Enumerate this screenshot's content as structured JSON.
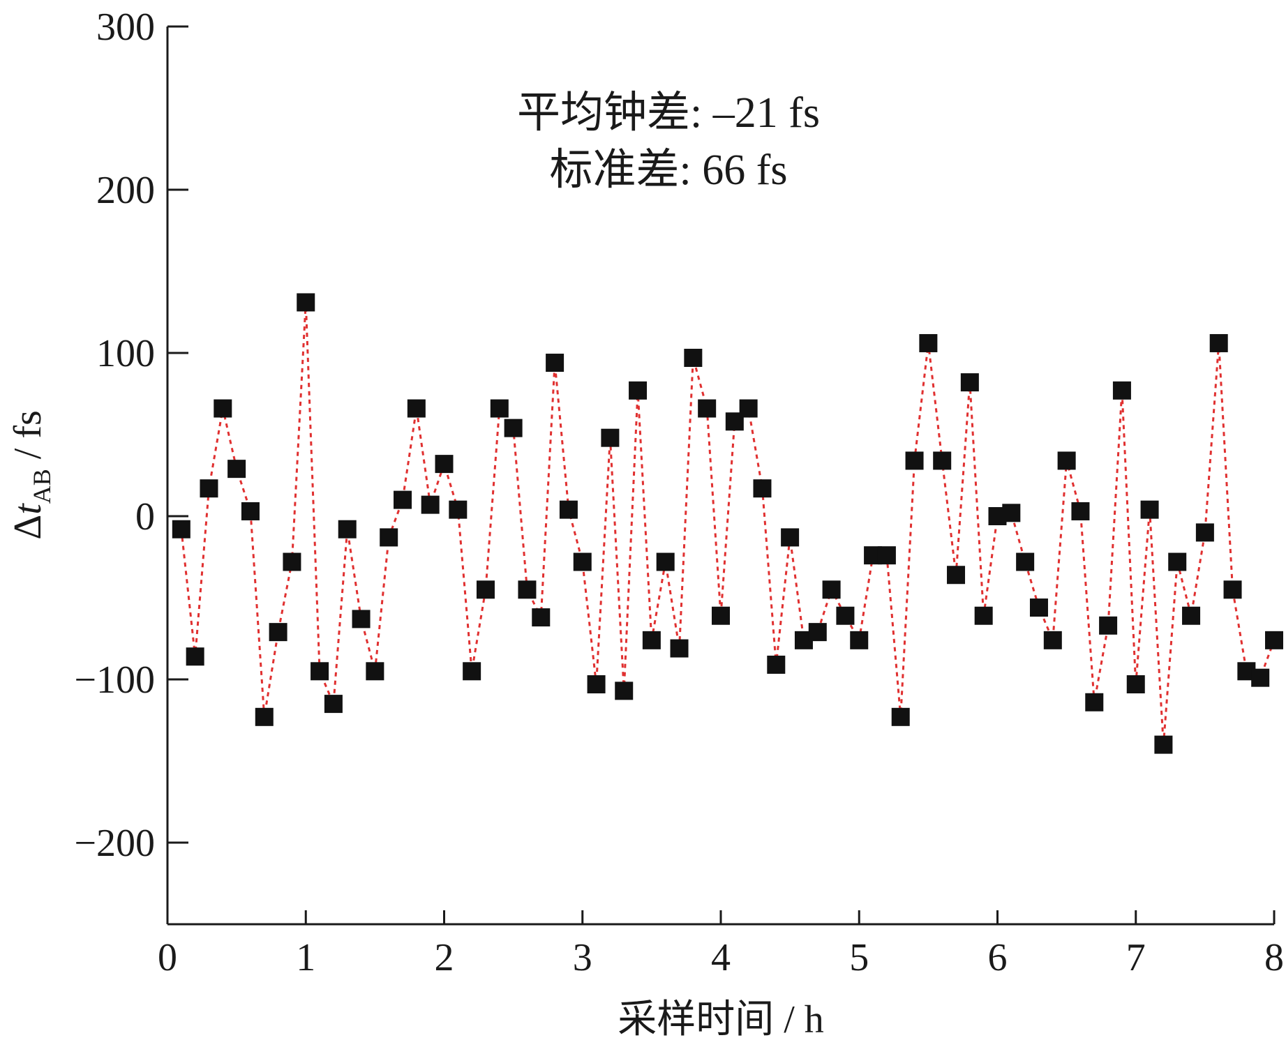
{
  "colors": {
    "line": "#e03030",
    "marker": "#111111",
    "axis": "#1a1a1a"
  },
  "chart_data": {
    "type": "line",
    "xlabel": "采样时间 / h",
    "ylabel": {
      "prefix": "Δ",
      "var": "t",
      "sub": "AB",
      "unit": " / fs"
    },
    "xlim": [
      0,
      8
    ],
    "ylim": [
      -250,
      300
    ],
    "x_ticks": [
      0,
      1,
      2,
      3,
      4,
      5,
      6,
      7,
      8
    ],
    "y_ticks": [
      -200,
      -100,
      0,
      100,
      200,
      300
    ],
    "x_tick_labels": [
      "0",
      "1",
      "2",
      "3",
      "4",
      "5",
      "6",
      "7",
      "8"
    ],
    "y_tick_labels": [
      "−200",
      "−100",
      "0",
      "100",
      "200",
      "300"
    ],
    "annotations": [
      "平均钟差: –21 fs",
      "标准差: 66 fs"
    ],
    "grid": false,
    "marker": "square",
    "line_style": "dotted",
    "series": [
      {
        "x": [
          0.1,
          0.2,
          0.3,
          0.4,
          0.5,
          0.6,
          0.7,
          0.8,
          0.9,
          1.0,
          1.1,
          1.2,
          1.3,
          1.4,
          1.5,
          1.6,
          1.7,
          1.8,
          1.9,
          2.0,
          2.1,
          2.2,
          2.3,
          2.4,
          2.5,
          2.6,
          2.7,
          2.8,
          2.9,
          3.0,
          3.1,
          3.2,
          3.3,
          3.4,
          3.5,
          3.6,
          3.7,
          3.8,
          3.9,
          4.0,
          4.1,
          4.2,
          4.3,
          4.4,
          4.5,
          4.6,
          4.7,
          4.8,
          4.9,
          5.0,
          5.1,
          5.2,
          5.3,
          5.4,
          5.5,
          5.6,
          5.7,
          5.8,
          5.9,
          6.0,
          6.1,
          6.2,
          6.3,
          6.4,
          6.5,
          6.6,
          6.7,
          6.8,
          6.9,
          7.0,
          7.1,
          7.2,
          7.3,
          7.4,
          7.5,
          7.6,
          7.7,
          7.8,
          7.9,
          8.0
        ],
        "y": [
          -8,
          -86,
          17,
          66,
          29,
          3,
          -123,
          -71,
          -28,
          131,
          -95,
          -115,
          -8,
          -63,
          -95,
          -13,
          10,
          66,
          7,
          32,
          4,
          -95,
          -45,
          66,
          54,
          -45,
          -62,
          94,
          4,
          -28,
          -103,
          48,
          -107,
          77,
          -76,
          -28,
          -81,
          97,
          66,
          -61,
          58,
          66,
          17,
          -91,
          -13,
          -76,
          -71,
          -45,
          -61,
          -76,
          -24,
          -24,
          -123,
          34,
          106,
          34,
          -36,
          82,
          -61,
          0,
          2,
          -28,
          -56,
          -76,
          34,
          3,
          -114,
          -67,
          77,
          -103,
          4,
          -140,
          -28,
          -61,
          -10,
          106,
          -45,
          -95,
          -99,
          -76
        ]
      }
    ]
  }
}
